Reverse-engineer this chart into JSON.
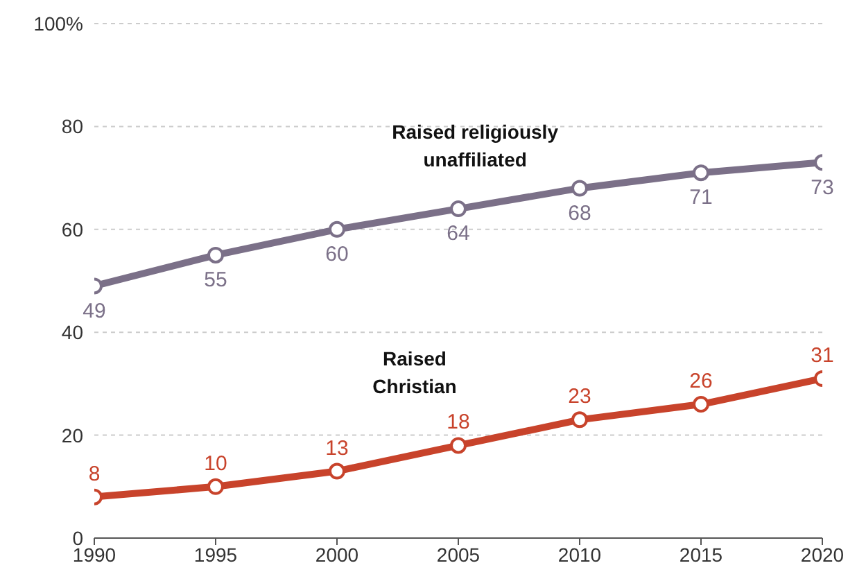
{
  "chart_data": {
    "type": "line",
    "x": [
      1990,
      1995,
      2000,
      2005,
      2010,
      2015,
      2020
    ],
    "xlim": [
      1990,
      2020
    ],
    "xticks": [
      1990,
      1995,
      2000,
      2005,
      2010,
      2015,
      2020
    ],
    "ylim": [
      0,
      100
    ],
    "yticks": [
      0,
      20,
      40,
      60,
      80,
      {
        "value": 100,
        "label": "100%"
      }
    ],
    "grid": "y",
    "marker": "circle",
    "line_style": "solid",
    "data_labels": true,
    "series": [
      {
        "name": "Raised religiously unaffiliated",
        "color": "#7b7088",
        "values": [
          49,
          55,
          60,
          64,
          68,
          71,
          73
        ]
      },
      {
        "name": "Raised Christian",
        "color": "#c8432b",
        "values": [
          8,
          10,
          13,
          18,
          23,
          26,
          31
        ]
      }
    ]
  }
}
